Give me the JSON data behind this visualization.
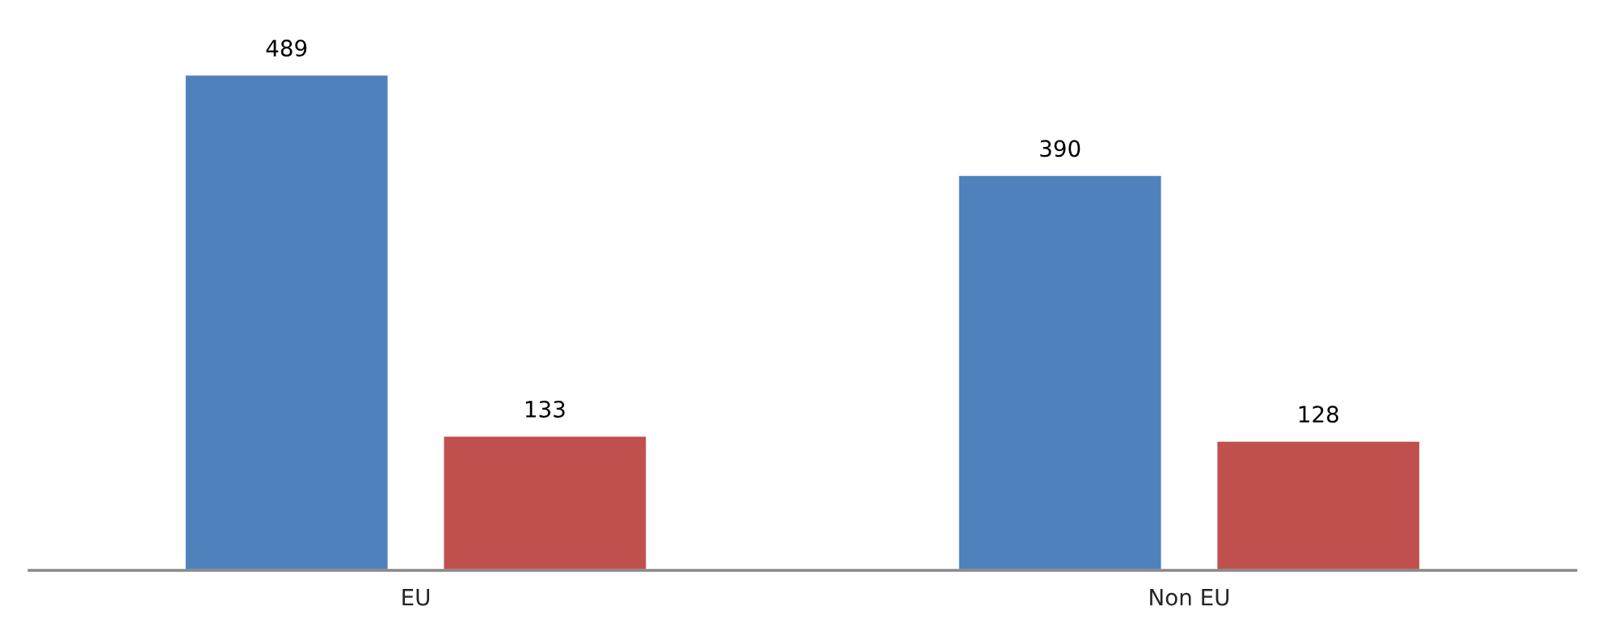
{
  "chart_data": {
    "type": "bar",
    "categories": [
      "EU",
      "Non EU"
    ],
    "series": [
      {
        "color": "#4f81bd",
        "values": [
          489,
          390
        ]
      },
      {
        "color": "#c0504d",
        "values": [
          133,
          128
        ]
      }
    ],
    "data_labels": true
  }
}
